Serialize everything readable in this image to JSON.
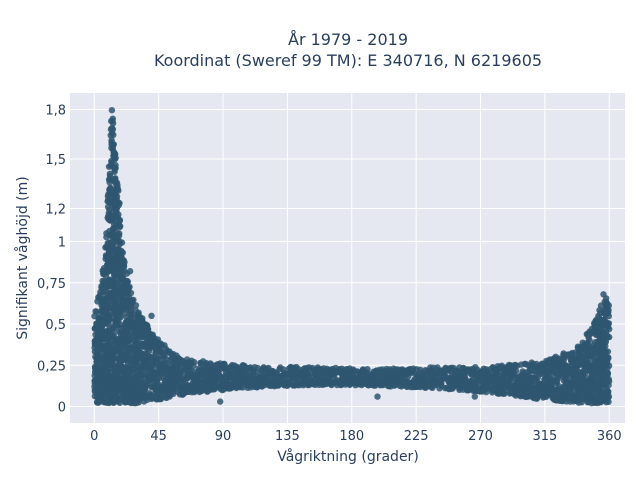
{
  "chart_data": {
    "type": "scatter",
    "title_lines": [
      "År 1979 - 2019",
      "Koordinat (Sweref 99 TM): E 340716, N 6219605"
    ],
    "xlabel": "Vågriktning (grader)",
    "ylabel": "Signifikant våghöjd (m)",
    "xlim": [
      -17,
      371
    ],
    "ylim": [
      -0.1,
      1.9
    ],
    "xticks": [
      0,
      45,
      90,
      135,
      180,
      225,
      270,
      315,
      360
    ],
    "xtick_labels": [
      "0",
      "45",
      "90",
      "135",
      "180",
      "225",
      "270",
      "315",
      "360"
    ],
    "yticks": [
      0,
      0.25,
      0.5,
      0.75,
      1,
      1.2,
      1.5,
      1.8
    ],
    "ytick_labels": [
      "0",
      "0,25",
      "0,5",
      "0,75",
      "1",
      "1,2",
      "1,5",
      "1,8"
    ],
    "grid": true,
    "marker_color": "#2f5670",
    "plot_bgcolor": "#e5e8f1",
    "envelope": {
      "x": [
        0,
        3,
        6,
        9,
        11,
        12,
        14,
        17,
        20,
        25,
        30,
        35,
        40,
        45,
        50,
        60,
        70,
        80,
        90,
        120,
        150,
        180,
        210,
        240,
        270,
        300,
        315,
        330,
        340,
        345,
        350,
        355,
        358,
        360
      ],
      "upper": [
        0.55,
        0.7,
        0.8,
        1.1,
        1.55,
        1.87,
        1.65,
        1.25,
        0.95,
        0.7,
        0.6,
        0.52,
        0.45,
        0.4,
        0.36,
        0.3,
        0.28,
        0.27,
        0.26,
        0.24,
        0.24,
        0.23,
        0.23,
        0.24,
        0.24,
        0.26,
        0.28,
        0.33,
        0.38,
        0.45,
        0.55,
        0.62,
        0.68,
        0.6
      ],
      "lower": [
        0.02,
        0.02,
        0.02,
        0.02,
        0.02,
        0.02,
        0.02,
        0.02,
        0.02,
        0.02,
        0.02,
        0.03,
        0.04,
        0.04,
        0.05,
        0.07,
        0.08,
        0.09,
        0.1,
        0.12,
        0.13,
        0.13,
        0.12,
        0.11,
        0.09,
        0.06,
        0.04,
        0.03,
        0.02,
        0.02,
        0.02,
        0.02,
        0.02,
        0.02
      ]
    },
    "outliers": [
      {
        "x": 88,
        "y": 0.03
      },
      {
        "x": 198,
        "y": 0.06
      },
      {
        "x": 266,
        "y": 0.06
      },
      {
        "x": 5,
        "y": 0.72
      },
      {
        "x": 356,
        "y": 0.68
      },
      {
        "x": 25,
        "y": 0.82
      },
      {
        "x": 40,
        "y": 0.55
      }
    ]
  }
}
